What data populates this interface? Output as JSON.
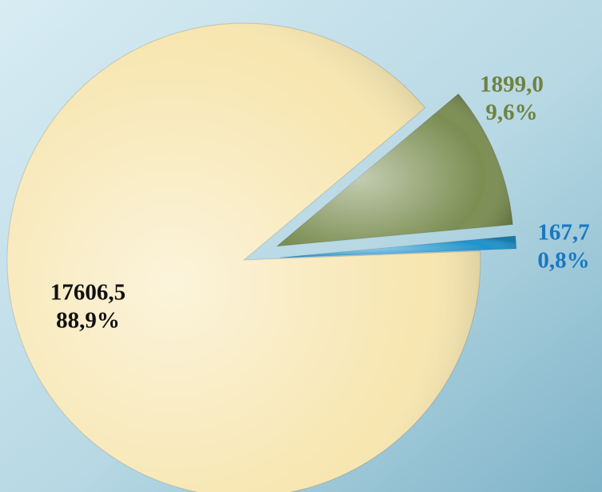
{
  "chart_data": {
    "type": "pie",
    "values": [
      17606.5,
      1899.0,
      167.7
    ],
    "value_labels": [
      "17606,5",
      "1899,0",
      "167,7"
    ],
    "percent_labels": [
      "88,9%",
      "9,6%",
      "0,8%"
    ],
    "colors": [
      "#f7e6b0",
      "#7b8e52",
      "#1f93cc"
    ],
    "label_colors": [
      "#111111",
      "#6f8240",
      "#1a78c2"
    ]
  }
}
